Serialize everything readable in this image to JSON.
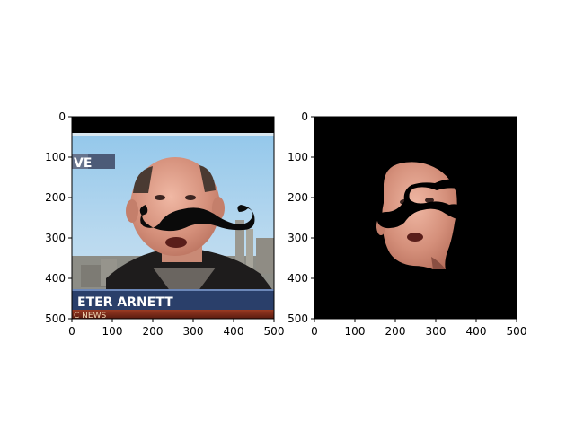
{
  "figure": {
    "panels": [
      {
        "id": "left",
        "description_visible": "photo with overlaid mustache",
        "xticks": [
          "0",
          "100",
          "200",
          "300",
          "400",
          "500"
        ],
        "yticks": [
          "0",
          "100",
          "200",
          "300",
          "400",
          "500"
        ],
        "overlay_text": {
          "banner_top": "VE",
          "name": "ETER ARNETT",
          "channel": "C NEWS"
        }
      },
      {
        "id": "right",
        "description_visible": "segmented face on black background with mustache cut-out",
        "xticks": [
          "0",
          "100",
          "200",
          "300",
          "400",
          "500"
        ],
        "yticks": [
          "0",
          "100",
          "200",
          "300",
          "400",
          "500"
        ]
      }
    ]
  }
}
